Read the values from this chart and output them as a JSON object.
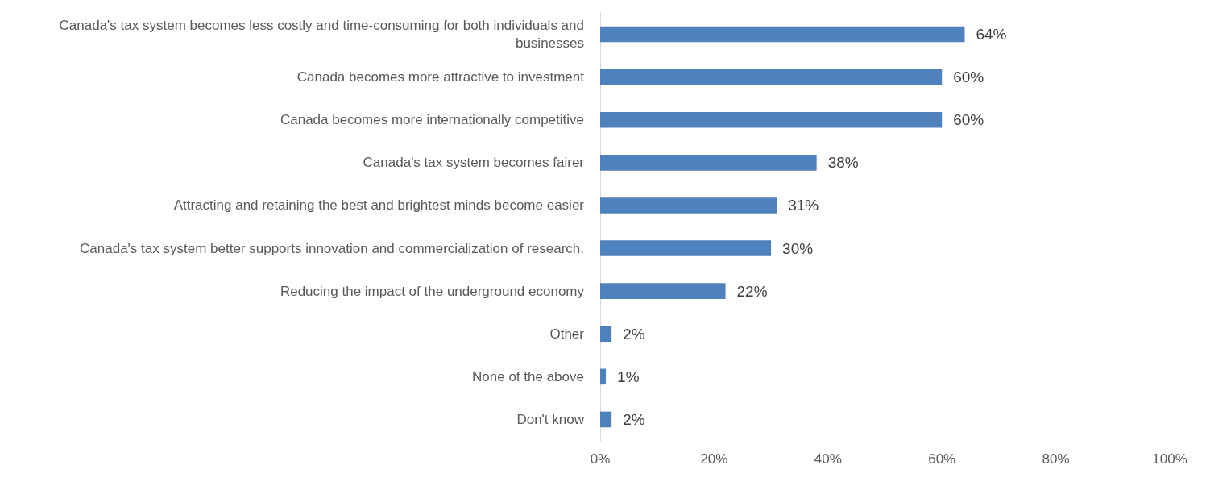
{
  "chart_data": {
    "type": "bar",
    "orientation": "horizontal",
    "categories": [
      "Canada's tax system becomes less costly and time-consuming for both individuals and businesses",
      "Canada becomes more attractive to investment",
      "Canada becomes more internationally competitive",
      "Canada's tax system becomes fairer",
      "Attracting and retaining the best and brightest minds become easier",
      "Canada's tax system better supports innovation and commercialization of research.",
      "Reducing the impact of the underground economy",
      "Other",
      "None of the above",
      "Don't know"
    ],
    "values": [
      64,
      60,
      60,
      38,
      31,
      30,
      22,
      2,
      1,
      2
    ],
    "value_labels": [
      "64%",
      "60%",
      "60%",
      "38%",
      "31%",
      "30%",
      "22%",
      "2%",
      "1%",
      "2%"
    ],
    "color": "#4f81bd",
    "xlim": [
      0,
      100
    ],
    "xticks": [
      {
        "value": 0,
        "label": "0%"
      },
      {
        "value": 20,
        "label": "20%"
      },
      {
        "value": 40,
        "label": "40%"
      },
      {
        "value": 60,
        "label": "60%"
      },
      {
        "value": 80,
        "label": "80%"
      },
      {
        "value": 100,
        "label": "100%"
      }
    ],
    "grid": false
  }
}
